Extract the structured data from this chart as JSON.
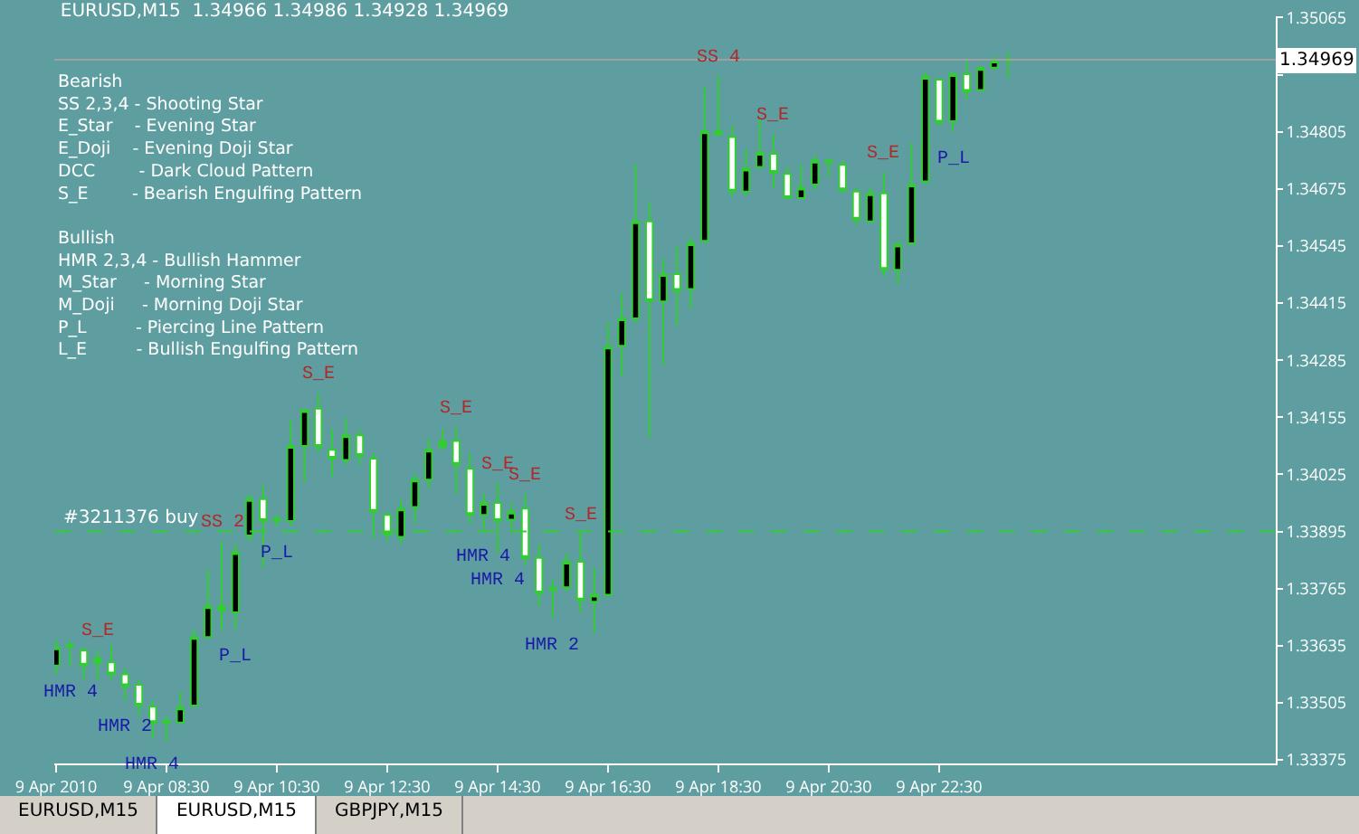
{
  "chart_data": {
    "type": "candlestick",
    "title": "EURUSD,M15  1.34966 1.34986 1.34928 1.34969",
    "color": "#32cd32",
    "x": [
      "2010-04-09T06:30",
      "2010-04-09T06:45",
      "2010-04-09T07:00",
      "2010-04-09T07:15",
      "2010-04-09T07:30",
      "2010-04-09T07:45",
      "2010-04-09T08:00",
      "2010-04-09T08:15",
      "2010-04-09T08:30",
      "2010-04-09T08:45",
      "2010-04-09T09:00",
      "2010-04-09T09:15",
      "2010-04-09T09:30",
      "2010-04-09T09:45",
      "2010-04-09T10:00",
      "2010-04-09T10:15",
      "2010-04-09T10:30",
      "2010-04-09T10:45",
      "2010-04-09T11:00",
      "2010-04-09T11:15",
      "2010-04-09T11:30",
      "2010-04-09T11:45",
      "2010-04-09T12:00",
      "2010-04-09T12:15",
      "2010-04-09T12:30",
      "2010-04-09T12:45",
      "2010-04-09T13:00",
      "2010-04-09T13:15",
      "2010-04-09T13:30",
      "2010-04-09T13:45",
      "2010-04-09T14:00",
      "2010-04-09T14:15",
      "2010-04-09T14:30",
      "2010-04-09T14:45",
      "2010-04-09T15:00",
      "2010-04-09T15:15",
      "2010-04-09T15:30",
      "2010-04-09T15:45",
      "2010-04-09T16:00",
      "2010-04-09T16:15",
      "2010-04-09T16:30",
      "2010-04-09T16:45",
      "2010-04-09T17:00",
      "2010-04-09T17:15",
      "2010-04-09T17:30",
      "2010-04-09T17:45",
      "2010-04-09T18:00",
      "2010-04-09T18:15",
      "2010-04-09T18:30",
      "2010-04-09T18:45",
      "2010-04-09T19:00",
      "2010-04-09T19:15",
      "2010-04-09T19:30",
      "2010-04-09T19:45",
      "2010-04-09T20:00",
      "2010-04-09T20:15",
      "2010-04-09T20:30",
      "2010-04-09T20:45",
      "2010-04-09T21:00",
      "2010-04-09T21:15",
      "2010-04-09T21:30",
      "2010-04-09T21:45",
      "2010-04-09T22:00",
      "2010-04-09T22:15",
      "2010-04-09T22:30",
      "2010-04-09T22:45",
      "2010-04-09T23:00",
      "2010-04-09T23:15",
      "2010-04-09T23:30",
      "2010-04-09T23:45"
    ],
    "ohlc": [
      [
        1.3359,
        1.33649,
        1.33569,
        1.33631
      ],
      [
        1.33633,
        1.33645,
        1.33589,
        1.33637
      ],
      [
        1.33624,
        1.33631,
        1.33557,
        1.3359
      ],
      [
        1.33596,
        1.33625,
        1.33557,
        1.33606
      ],
      [
        1.33597,
        1.33637,
        1.33557,
        1.3357
      ],
      [
        1.3357,
        1.33585,
        1.3351,
        1.33543
      ],
      [
        1.33546,
        1.33557,
        1.33476,
        1.33499
      ],
      [
        1.33496,
        1.3351,
        1.33423,
        1.33459
      ],
      [
        1.33464,
        1.33476,
        1.33416,
        1.3346
      ],
      [
        1.3346,
        1.3353,
        1.33456,
        1.33494
      ],
      [
        1.33499,
        1.33671,
        1.33496,
        1.33655
      ],
      [
        1.33655,
        1.33807,
        1.33651,
        1.33725
      ],
      [
        1.33725,
        1.33872,
        1.33671,
        1.33715
      ],
      [
        1.33711,
        1.33867,
        1.33671,
        1.33848
      ],
      [
        1.33886,
        1.3398,
        1.33872,
        1.33969
      ],
      [
        1.33969,
        1.34,
        1.33812,
        1.33919
      ],
      [
        1.33919,
        1.33933,
        1.33906,
        1.33924
      ],
      [
        1.33919,
        1.34149,
        1.33907,
        1.3409
      ],
      [
        1.3409,
        1.34175,
        1.34008,
        1.34171
      ],
      [
        1.34175,
        1.3421,
        1.34074,
        1.34088
      ],
      [
        1.34081,
        1.34129,
        1.3402,
        1.34061
      ],
      [
        1.34058,
        1.34154,
        1.34047,
        1.34114
      ],
      [
        1.34114,
        1.34128,
        1.34047,
        1.34067
      ],
      [
        1.34061,
        1.34074,
        1.33879,
        1.3394
      ],
      [
        1.33933,
        1.3394,
        1.33872,
        1.33888
      ],
      [
        1.33883,
        1.33967,
        1.33866,
        1.33947
      ],
      [
        1.33951,
        1.34027,
        1.33913,
        1.34013
      ],
      [
        1.34013,
        1.34108,
        1.33993,
        1.34081
      ],
      [
        1.34088,
        1.34128,
        1.34081,
        1.34101
      ],
      [
        1.34101,
        1.34134,
        1.3398,
        1.34047
      ],
      [
        1.34038,
        1.34074,
        1.33913,
        1.33933
      ],
      [
        1.33933,
        1.3398,
        1.33899,
        1.3396
      ],
      [
        1.3396,
        1.34007,
        1.33846,
        1.33919
      ],
      [
        1.33922,
        1.3396,
        1.33899,
        1.3394
      ],
      [
        1.33947,
        1.3398,
        1.33819,
        1.33835
      ],
      [
        1.33835,
        1.33866,
        1.33725,
        1.33754
      ],
      [
        1.33766,
        1.33785,
        1.33698,
        1.33762
      ],
      [
        1.33768,
        1.33846,
        1.33758,
        1.33826
      ],
      [
        1.33826,
        1.33892,
        1.33711,
        1.33738
      ],
      [
        1.33735,
        1.33812,
        1.33664,
        1.33751
      ],
      [
        1.33751,
        1.34371,
        1.33746,
        1.34316
      ],
      [
        1.34318,
        1.34437,
        1.34249,
        1.3438
      ],
      [
        1.3438,
        1.34732,
        1.3437,
        1.34601
      ],
      [
        1.34601,
        1.34645,
        1.34108,
        1.3442
      ],
      [
        1.34419,
        1.34517,
        1.34275,
        1.34481
      ],
      [
        1.34481,
        1.34544,
        1.34363,
        1.34443
      ],
      [
        1.34447,
        1.34564,
        1.34403,
        1.34551
      ],
      [
        1.34557,
        1.34907,
        1.34551,
        1.34806
      ],
      [
        1.34806,
        1.34934,
        1.34796,
        1.34798
      ],
      [
        1.34793,
        1.34819,
        1.34658,
        1.34669
      ],
      [
        1.34669,
        1.34766,
        1.34658,
        1.34721
      ],
      [
        1.34725,
        1.34833,
        1.34719,
        1.34757
      ],
      [
        1.34755,
        1.34799,
        1.34678,
        1.34712
      ],
      [
        1.34709,
        1.34725,
        1.34652,
        1.34654
      ],
      [
        1.34654,
        1.34732,
        1.34652,
        1.34678
      ],
      [
        1.34685,
        1.34752,
        1.34672,
        1.34739
      ],
      [
        1.34739,
        1.34743,
        1.34703,
        1.34735
      ],
      [
        1.3473,
        1.34739,
        1.34665,
        1.34672
      ],
      [
        1.34669,
        1.34678,
        1.34591,
        1.34605
      ],
      [
        1.34601,
        1.34678,
        1.34598,
        1.34665
      ],
      [
        1.34665,
        1.34712,
        1.34477,
        1.34491
      ],
      [
        1.34491,
        1.34557,
        1.34457,
        1.34548
      ],
      [
        1.34551,
        1.34779,
        1.34544,
        1.34685
      ],
      [
        1.34692,
        1.3494,
        1.34685,
        1.3493
      ],
      [
        1.34924,
        1.34927,
        1.34819,
        1.34826
      ],
      [
        1.34829,
        1.3494,
        1.34806,
        1.34936
      ],
      [
        1.34936,
        1.34967,
        1.3488,
        1.34896
      ],
      [
        1.349,
        1.34954,
        1.34896,
        1.3495
      ],
      [
        1.34951,
        1.34977,
        1.34947,
        1.34967
      ],
      [
        1.34966,
        1.34986,
        1.34928,
        1.34969
      ]
    ],
    "colors": [
      "#000000",
      "#32cd32",
      "#ffffff",
      "#32cd32",
      "#ffffff",
      "#ffffff",
      "#ffffff",
      "#ffffff",
      "#32cd32",
      "#000000",
      "#000000",
      "#000000",
      "#32cd32",
      "#000000",
      "#000000",
      "#ffffff",
      "#32cd32",
      "#000000",
      "#000000",
      "#ffffff",
      "#ffffff",
      "#000000",
      "#ffffff",
      "#ffffff",
      "#ffffff",
      "#000000",
      "#000000",
      "#000000",
      "#32cd32",
      "#ffffff",
      "#ffffff",
      "#000000",
      "#ffffff",
      "#000000",
      "#ffffff",
      "#ffffff",
      "#32cd32",
      "#000000",
      "#ffffff",
      "#000000",
      "#000000",
      "#000000",
      "#000000",
      "#ffffff",
      "#000000",
      "#ffffff",
      "#000000",
      "#000000",
      "#32cd32",
      "#ffffff",
      "#000000",
      "#000000",
      "#ffffff",
      "#ffffff",
      "#000000",
      "#000000",
      "#32cd32",
      "#ffffff",
      "#ffffff",
      "#000000",
      "#ffffff",
      "#000000",
      "#000000",
      "#000000",
      "#ffffff",
      "#000000",
      "#ffffff",
      "#000000",
      "#000000",
      "#32cd32"
    ],
    "xlim": [
      "2010-04-09T06:28",
      "2010-04-10T04:36"
    ],
    "xticks": [
      {
        "value": "2010-04-09T06:30",
        "label": "9 Apr 2010"
      },
      {
        "value": "2010-04-09T08:30",
        "label": "9 Apr 08:30"
      },
      {
        "value": "2010-04-09T10:30",
        "label": "9 Apr 10:30"
      },
      {
        "value": "2010-04-09T12:30",
        "label": "9 Apr 12:30"
      },
      {
        "value": "2010-04-09T14:30",
        "label": "9 Apr 14:30"
      },
      {
        "value": "2010-04-09T16:30",
        "label": "9 Apr 16:30"
      },
      {
        "value": "2010-04-09T18:30",
        "label": "9 Apr 18:30"
      },
      {
        "value": "2010-04-09T20:30",
        "label": "9 Apr 20:30"
      },
      {
        "value": "2010-04-09T22:30",
        "label": "9 Apr 22:30"
      }
    ],
    "ylim": [
      1.33367,
      1.35068
    ],
    "yticks": [
      1.33375,
      1.33505,
      1.33635,
      1.33765,
      1.33895,
      1.34025,
      1.34155,
      1.34285,
      1.34415,
      1.34545,
      1.34675,
      1.34805,
      {
        "value": 1.34935,
        "label": null
      },
      1.35065
    ],
    "ref_lines": [
      {
        "axis": "y",
        "value": 1.33895,
        "label": "#3211376 buy",
        "color": "#32cd32",
        "line_style": "dashed"
      },
      {
        "axis": "y",
        "value": 1.34969,
        "label": "1.34969",
        "color": "#a0a0a0",
        "line_style": "solid"
      }
    ],
    "annotations": [
      "Bearish\nSS 2,3,4 - Shooting Star\nE_Star    - Evening Star\nE_Doji    - Evening Doji Star\nDCC        - Dark Cloud Pattern\nS_E        - Bearish Engulfing Pattern\n\nBullish\nHMR 2,3,4 - Bullish Hammer\nM_Star     - Morning Star\nM_Doji     - Morning Doji Star\nP_L         - Piercing Line Pattern\nL_E         - Bullish Engulfing Pattern",
      "EURUSD,M15",
      "EURUSD,M15",
      "GBPJPY,M15",
      {
        "text": "HMR 4",
        "x": "2010-04-09T06:45",
        "y": 1.33589
      },
      {
        "text": "S_E",
        "x": "2010-04-09T07:15",
        "y": 1.33625
      },
      {
        "text": "HMR 2",
        "x": "2010-04-09T07:45",
        "y": 1.3351
      },
      {
        "text": "HMR 4",
        "x": "2010-04-09T08:15",
        "y": 1.33423
      },
      {
        "text": "SS 2",
        "x": "2010-04-09T09:30",
        "y": 1.33872
      },
      {
        "text": "P_L",
        "x": "2010-04-09T09:45",
        "y": 1.33671
      },
      {
        "text": "P_L",
        "x": "2010-04-09T10:30",
        "y": 1.33906
      },
      {
        "text": "S_E",
        "x": "2010-04-09T11:15",
        "y": 1.3421
      },
      {
        "text": "S_E",
        "x": "2010-04-09T13:45",
        "y": 1.34134
      },
      {
        "text": "HMR 4",
        "x": "2010-04-09T14:15",
        "y": 1.33899
      },
      {
        "text": "S_E",
        "x": "2010-04-09T14:30",
        "y": 1.34007
      },
      {
        "text": "HMR 4",
        "x": "2010-04-09T14:30",
        "y": 1.33846
      },
      {
        "text": "S_E",
        "x": "2010-04-09T15:00",
        "y": 1.3398
      },
      {
        "text": "HMR 2",
        "x": "2010-04-09T15:30",
        "y": 1.33698
      },
      {
        "text": "S_E",
        "x": "2010-04-09T16:00",
        "y": 1.33892
      },
      {
        "text": "SS 4",
        "x": "2010-04-09T18:30",
        "y": 1.34934
      },
      {
        "text": "S_E",
        "x": "2010-04-09T19:30",
        "y": 1.34799
      },
      {
        "text": "S_E",
        "x": "2010-04-09T21:30",
        "y": 1.34712
      },
      {
        "text": "P_L",
        "x": "2010-04-09T22:45",
        "y": 1.34806
      }
    ]
  }
}
